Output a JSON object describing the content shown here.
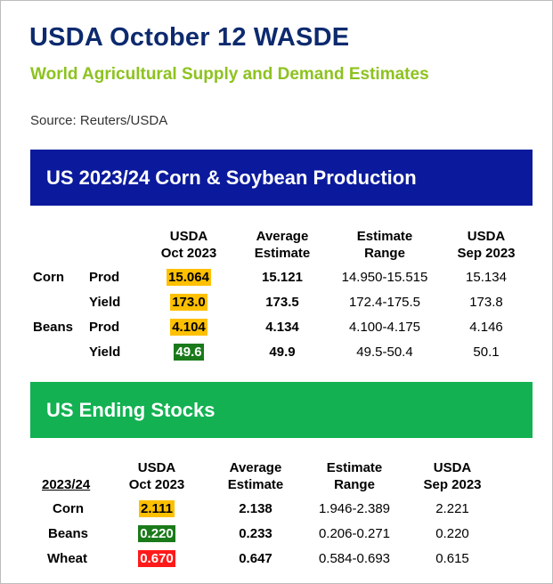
{
  "header": {
    "title": "USDA October 12 WASDE",
    "subtitle": "World Agricultural Supply and Demand Estimates",
    "source": "Source: Reuters/USDA"
  },
  "production": {
    "banner": "US 2023/24 Corn & Soybean Production",
    "columns": [
      "USDA\nOct 2023",
      "Average\nEstimate",
      "Estimate\nRange",
      "USDA\nSep 2023"
    ],
    "rows": [
      {
        "crop": "Corn",
        "metric": "Prod",
        "usda_oct": "15.064",
        "avg": "15.121",
        "range": "14.950-15.515",
        "usda_sep": "15.134",
        "highlight": "#ffc000"
      },
      {
        "crop": "",
        "metric": "Yield",
        "usda_oct": "173.0",
        "avg": "173.5",
        "range": "172.4-175.5",
        "usda_sep": "173.8",
        "highlight": "#ffc000"
      },
      {
        "crop": "Beans",
        "metric": "Prod",
        "usda_oct": "4.104",
        "avg": "4.134",
        "range": "4.100-4.175",
        "usda_sep": "4.146",
        "highlight": "#ffc000"
      },
      {
        "crop": "",
        "metric": "Yield",
        "usda_oct": "49.6",
        "avg": "49.9",
        "range": "49.5-50.4",
        "usda_sep": "50.1",
        "highlight": "#1a7a1a"
      }
    ]
  },
  "stocks": {
    "banner": "US Ending Stocks",
    "year_label": "2023/24",
    "columns": [
      "USDA\nOct 2023",
      "Average\nEstimate",
      "Estimate\nRange",
      "USDA\nSep 2023"
    ],
    "rows": [
      {
        "crop": "Corn",
        "usda_oct": "2.111",
        "avg": "2.138",
        "range": "1.946-2.389",
        "usda_sep": "2.221",
        "highlight": "#ffc000"
      },
      {
        "crop": "Beans",
        "usda_oct": "0.220",
        "avg": "0.233",
        "range": "0.206-0.271",
        "usda_sep": "0.220",
        "highlight": "#1a7a1a"
      },
      {
        "crop": "Wheat",
        "usda_oct": "0.670",
        "avg": "0.647",
        "range": "0.584-0.693",
        "usda_sep": "0.615",
        "highlight": "#ff1a1a"
      }
    ]
  }
}
